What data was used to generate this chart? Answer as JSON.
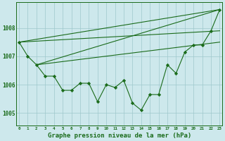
{
  "title": "Graphe pression niveau de la mer (hPa)",
  "bg_color": "#cde8ec",
  "line_color": "#1a6b1a",
  "grid_color": "#9fc8cc",
  "x_values": [
    0,
    1,
    2,
    3,
    4,
    5,
    6,
    7,
    8,
    9,
    10,
    11,
    12,
    13,
    14,
    15,
    16,
    17,
    18,
    19,
    20,
    21,
    22,
    23
  ],
  "series_main": [
    1007.5,
    1007.0,
    1006.7,
    1006.3,
    1006.3,
    1005.8,
    1005.8,
    1006.05,
    1006.05,
    1005.4,
    1006.0,
    1005.9,
    1006.15,
    1005.35,
    1005.1,
    1005.65,
    1005.65,
    1006.7,
    1006.4,
    1007.15,
    1007.4,
    1007.4,
    1007.9,
    1008.65
  ],
  "line1_x": [
    0,
    23
  ],
  "line1_y": [
    1007.5,
    1008.65
  ],
  "line2_x": [
    0,
    23
  ],
  "line2_y": [
    1007.5,
    1007.9
  ],
  "line3_x": [
    2,
    23
  ],
  "line3_y": [
    1006.7,
    1008.65
  ],
  "line4_x": [
    2,
    23
  ],
  "line4_y": [
    1006.7,
    1007.5
  ],
  "ylim": [
    1004.55,
    1008.9
  ],
  "yticks": [
    1005,
    1006,
    1007,
    1008
  ],
  "xlim": [
    -0.3,
    23.3
  ]
}
